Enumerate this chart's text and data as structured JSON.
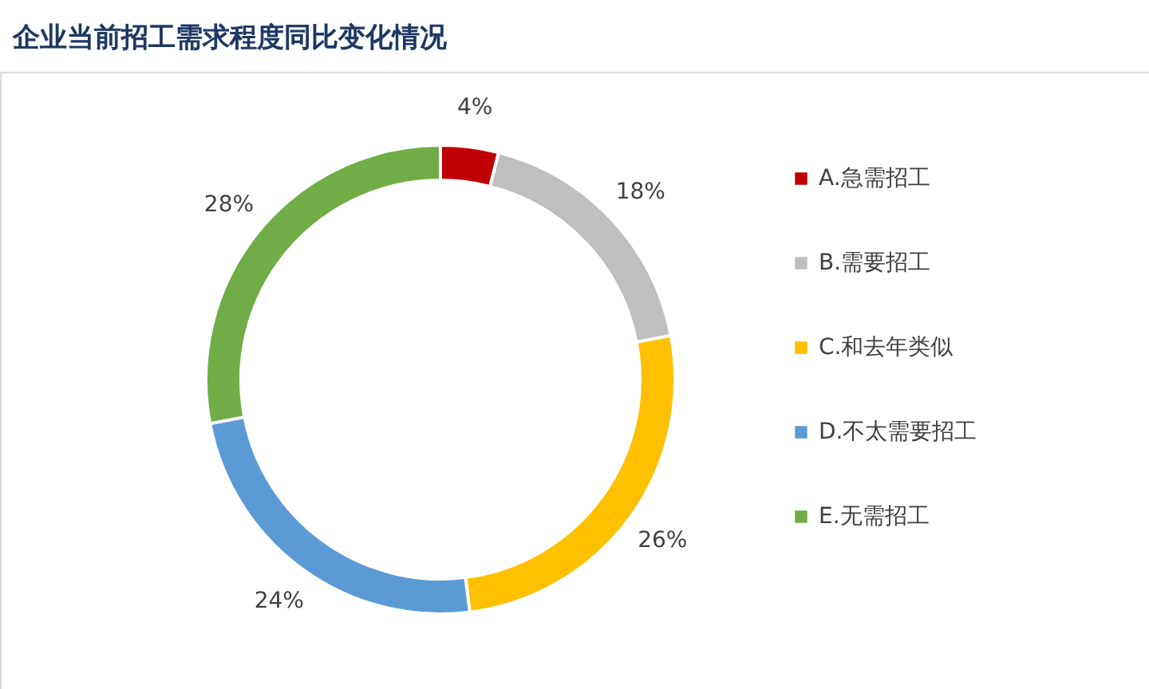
{
  "chart_data": {
    "type": "donut",
    "title": "企业当前招工需求程度同比变化情况",
    "categories": [
      "A.急需招工",
      "B.需要招工",
      "C.和去年类似",
      "D.不太需要招工",
      "E.无需招工"
    ],
    "values": [
      4,
      18,
      26,
      24,
      28
    ],
    "value_labels": [
      "4%",
      "18%",
      "26%",
      "24%",
      "28%"
    ],
    "colors": [
      "#c00000",
      "#bfbfbf",
      "#ffc000",
      "#5b9bd5",
      "#70ad47"
    ],
    "legend": "right"
  }
}
